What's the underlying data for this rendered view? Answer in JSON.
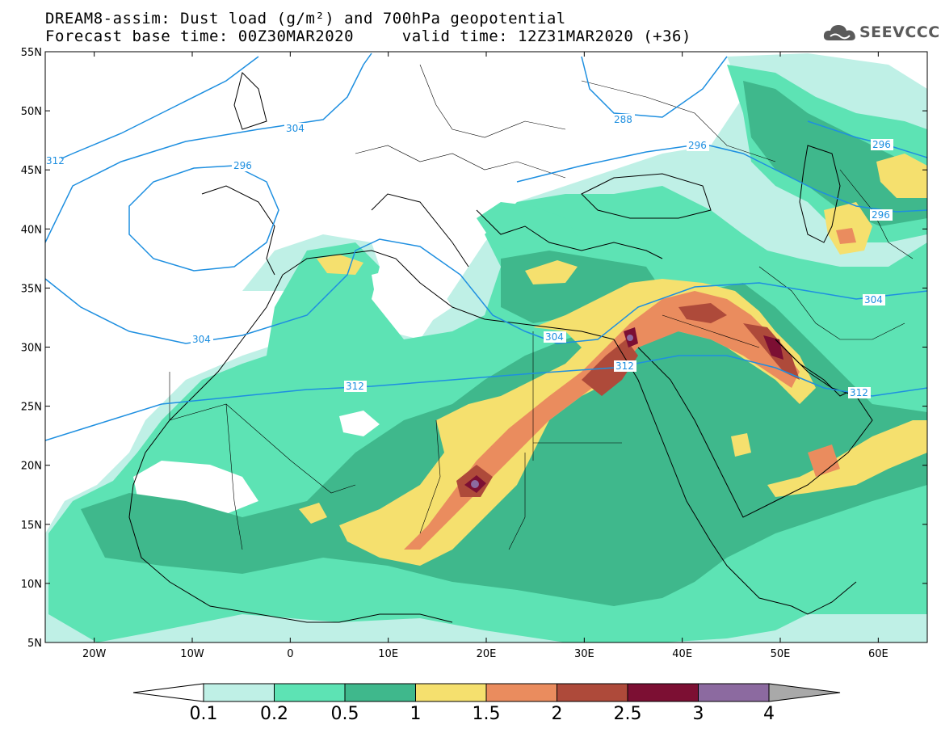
{
  "title": {
    "line1": "DREAM8-assim: Dust load (g/m²) and 700hPa geopotential",
    "line2_left": "Forecast base time: 00Z30MAR2020",
    "line2_right": "valid time: 12Z31MAR2020 (+36)"
  },
  "logo": {
    "text": "SEEVCCC",
    "icon": "cloud-icon"
  },
  "map": {
    "type": "filled-contour-map",
    "lon_range": [
      -25,
      65
    ],
    "lat_range": [
      5,
      55
    ],
    "lat_ticks": [
      "55N",
      "50N",
      "45N",
      "40N",
      "35N",
      "30N",
      "25N",
      "20N",
      "15N",
      "10N",
      "5N"
    ],
    "lon_ticks": [
      "20W",
      "10W",
      "0",
      "10E",
      "20E",
      "30E",
      "40E",
      "50E",
      "60E"
    ],
    "colorbar": {
      "levels": [
        "0.1",
        "0.2",
        "0.5",
        "1",
        "1.5",
        "2",
        "2.5",
        "3",
        "4"
      ],
      "colors": [
        "#bff0e6",
        "#5de3b4",
        "#3fb88c",
        "#f5e06e",
        "#ea8c5e",
        "#ae4a3a",
        "#7c0f33",
        "#8c6aa0"
      ],
      "under_color": "#ffffff",
      "over_color": "#a9a9a9"
    },
    "contour_color": "#1e8fe0",
    "contour_labels": [
      "312",
      "304",
      "296",
      "304",
      "288",
      "296",
      "296",
      "296",
      "304",
      "304",
      "312",
      "312",
      "312"
    ]
  }
}
